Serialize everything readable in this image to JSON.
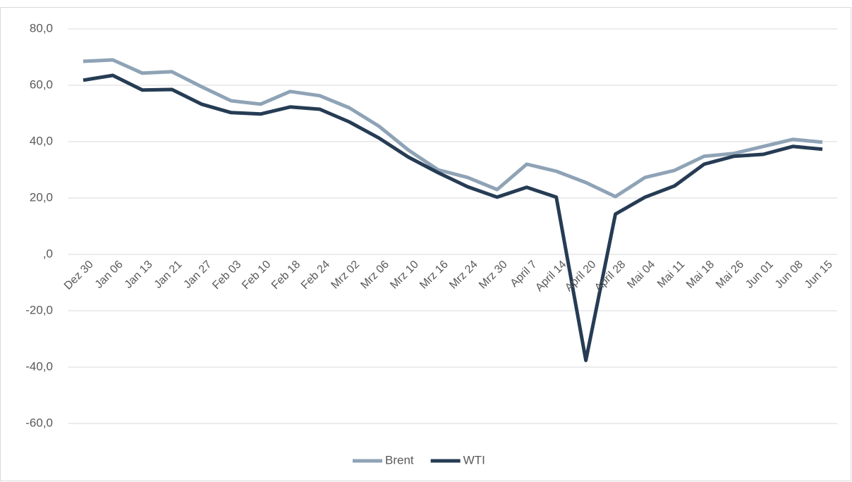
{
  "chart_data": {
    "type": "line",
    "categories": [
      "Dez 30",
      "Jan 06",
      "Jan 13",
      "Jan 21",
      "Jan 27",
      "Feb 03",
      "Feb 10",
      "Feb 18",
      "Feb 24",
      "Mrz 02",
      "Mrz 06",
      "Mrz 10",
      "Mrz 16",
      "Mrz 24",
      "Mrz 30",
      "April 7",
      "April 14",
      "April 20",
      "April 28",
      "Mai 04",
      "Mai 11",
      "Mai 18",
      "Mai 26",
      "Jun 01",
      "Jun 08",
      "Jun 15"
    ],
    "series": [
      {
        "name": "Brent",
        "color": "#8fa3b6",
        "values": [
          68.5,
          69,
          64.3,
          64.8,
          59.5,
          54.5,
          53.3,
          57.8,
          56.3,
          52,
          45.5,
          37,
          30,
          27.3,
          23,
          32,
          29.5,
          25.5,
          20.5,
          27.3,
          29.8,
          34.8,
          35.8,
          38.3,
          40.8,
          39.8
        ]
      },
      {
        "name": "WTI",
        "color": "#263c54",
        "values": [
          61.8,
          63.5,
          58.3,
          58.5,
          53.3,
          50.3,
          49.8,
          52.3,
          51.5,
          47,
          41.3,
          34.5,
          29,
          24,
          20.3,
          23.8,
          20.3,
          -37.6,
          14.3,
          20.3,
          24.3,
          32,
          34.8,
          35.5,
          38.3,
          37.3
        ]
      }
    ],
    "ylim": [
      -60,
      80
    ],
    "yticks": [
      {
        "value": -60,
        "label": "-60,0"
      },
      {
        "value": -40,
        "label": "-40,0"
      },
      {
        "value": -20,
        "label": "-20,0"
      },
      {
        "value": 0,
        "label": ",0"
      },
      {
        "value": 20,
        "label": "20,0"
      },
      {
        "value": 40,
        "label": "40,0"
      },
      {
        "value": 60,
        "label": "60,0"
      },
      {
        "value": 80,
        "label": "80,0"
      }
    ],
    "grid": true,
    "legend": "bottom"
  }
}
